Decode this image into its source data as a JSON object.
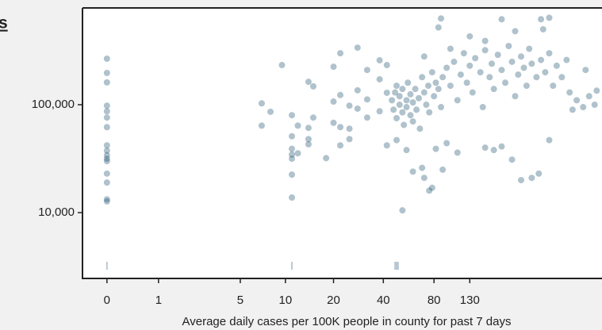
{
  "title_fragment": "s",
  "chart_data": {
    "type": "scatter",
    "xscale": "log1p",
    "yscale": "log",
    "color": "#1d4f6e",
    "xlabel": "Average daily cases per 100K people in county for past 7 days",
    "xlim": [
      -0.28,
      773
    ],
    "ylim": [
      2455,
      789000
    ],
    "xticks": [
      0,
      1,
      5,
      10,
      20,
      40,
      80,
      130
    ],
    "yticks": [
      {
        "value": 10000,
        "label": "10,000"
      },
      {
        "value": 100000,
        "label": "100,000"
      }
    ],
    "rug_x": [
      0,
      11,
      47,
      48,
      49
    ],
    "x": [
      0,
      0,
      0,
      0,
      0,
      0,
      0,
      0,
      0,
      0,
      0,
      0,
      0,
      0,
      0,
      0,
      7,
      7,
      8,
      9.5,
      11,
      11,
      11,
      11,
      11,
      11,
      11,
      12,
      12,
      14,
      14,
      14,
      14,
      15,
      15,
      18,
      20,
      20,
      20,
      22,
      22,
      22,
      22,
      25,
      25,
      25,
      28,
      28,
      28,
      32,
      32,
      32,
      38,
      38,
      38,
      42,
      42,
      42,
      52,
      48,
      55,
      60,
      68,
      70,
      75,
      78,
      82,
      90,
      95,
      110,
      160,
      180,
      200,
      230,
      260,
      300,
      330,
      380,
      88,
      85,
      200,
      340,
      380,
      350,
      130,
      160,
      100,
      70,
      240,
      45,
      46,
      47,
      48,
      48,
      50,
      50,
      52,
      52,
      53,
      55,
      55,
      56,
      58,
      58,
      60,
      60,
      62,
      63,
      65,
      66,
      68,
      70,
      72,
      74,
      75,
      78,
      80,
      82,
      85,
      88,
      90,
      95,
      100,
      105,
      110,
      115,
      120,
      125,
      130,
      135,
      140,
      150,
      155,
      160,
      170,
      175,
      180,
      190,
      200,
      210,
      220,
      230,
      240,
      250,
      260,
      270,
      280,
      290,
      300,
      320,
      340,
      360,
      380,
      400,
      420,
      450,
      480,
      500,
      550,
      600,
      650,
      700,
      720,
      620,
      520
    ],
    "y": [
      267000,
      197000,
      161000,
      98000,
      87000,
      76000,
      62000,
      42000,
      37500,
      34000,
      31600,
      30000,
      23000,
      19000,
      13300,
      12700,
      103000,
      64000,
      86000,
      233000,
      51000,
      80000,
      39000,
      34500,
      31600,
      22500,
      13800,
      64000,
      35500,
      163000,
      61000,
      48000,
      43000,
      148000,
      76000,
      32000,
      225000,
      107000,
      68000,
      300000,
      123000,
      62000,
      42000,
      98000,
      60000,
      48000,
      338000,
      136000,
      92000,
      210000,
      112000,
      76000,
      258000,
      172000,
      87000,
      233000,
      129000,
      42000,
      10500,
      47000,
      38000,
      24000,
      26000,
      21000,
      16000,
      17000,
      39000,
      25000,
      44000,
      36000,
      40000,
      38000,
      41000,
      31000,
      20000,
      21000,
      23000,
      47000,
      630000,
      520000,
      620000,
      620000,
      640000,
      500000,
      430000,
      390000,
      330000,
      280000,
      480000,
      110000,
      90000,
      130000,
      75000,
      150000,
      100000,
      120000,
      85000,
      140000,
      65000,
      110000,
      95000,
      160000,
      80000,
      125000,
      105000,
      70000,
      140000,
      90000,
      115000,
      60000,
      180000,
      130000,
      100000,
      150000,
      85000,
      200000,
      120000,
      160000,
      140000,
      95000,
      180000,
      220000,
      150000,
      250000,
      110000,
      190000,
      300000,
      160000,
      230000,
      130000,
      270000,
      200000,
      95000,
      320000,
      180000,
      240000,
      140000,
      290000,
      210000,
      160000,
      350000,
      250000,
      120000,
      190000,
      280000,
      220000,
      150000,
      330000,
      240000,
      180000,
      260000,
      200000,
      300000,
      150000,
      230000,
      180000,
      260000,
      130000,
      110000,
      95000,
      120000,
      100000,
      135000,
      210000,
      90000
    ]
  }
}
